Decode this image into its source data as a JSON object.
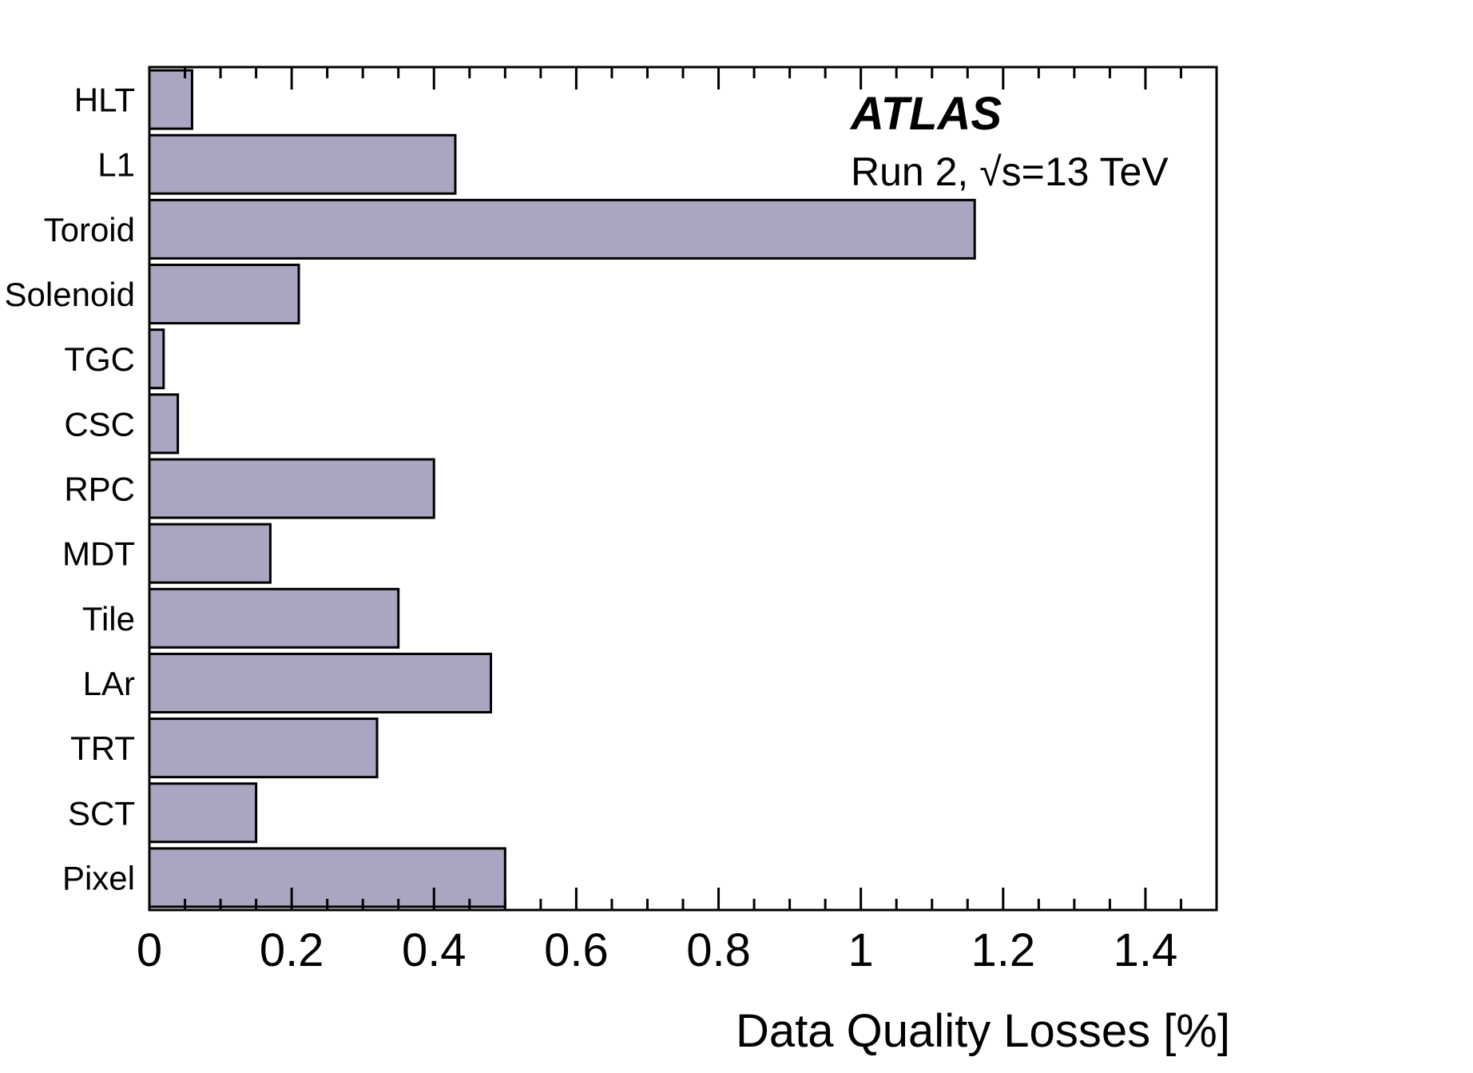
{
  "chart_data": {
    "type": "bar",
    "orientation": "horizontal",
    "categories": [
      "HLT",
      "L1",
      "Toroid",
      "Solenoid",
      "TGC",
      "CSC",
      "RPC",
      "MDT",
      "Tile",
      "LAr",
      "TRT",
      "SCT",
      "Pixel"
    ],
    "values": [
      0.06,
      0.43,
      1.16,
      0.21,
      0.02,
      0.04,
      0.4,
      0.17,
      0.35,
      0.48,
      0.32,
      0.15,
      0.5
    ],
    "xlabel": "Data Quality Losses [%]",
    "ylabel": "",
    "xlim": [
      0,
      1.5
    ],
    "x_ticks": [
      "0",
      "0.2",
      "0.4",
      "0.6",
      "0.8",
      "1",
      "1.2",
      "1.4"
    ],
    "grid": false,
    "bar_color": "#a8a6c0",
    "bar_edge_color": "#000000",
    "annotations": {
      "experiment": "ATLAS",
      "run_prefix": "Run 2, ",
      "sqrt": "√",
      "s_var": "s",
      "energy": "=13 TeV"
    }
  }
}
